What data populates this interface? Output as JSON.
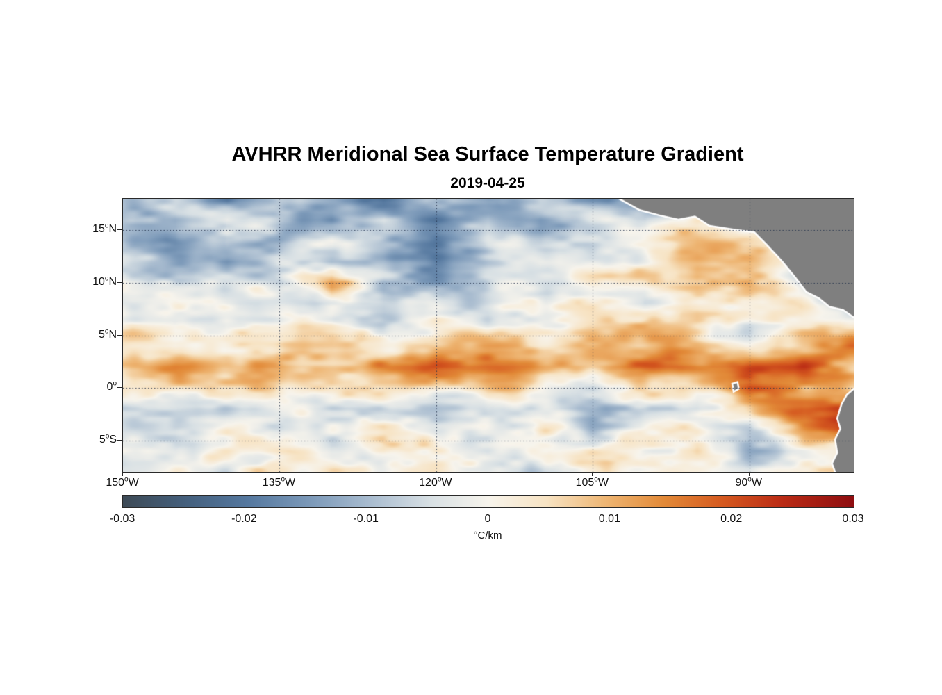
{
  "chart_data": {
    "type": "heatmap",
    "title": "AVHRR Meridional Sea Surface Temperature Gradient",
    "subtitle": "2019-04-25",
    "x_axis": {
      "range_lon": [
        -150,
        -80
      ],
      "ticks": [
        {
          "lon": -150,
          "deg": "150",
          "sup": "o",
          "dir": "W"
        },
        {
          "lon": -135,
          "deg": "135",
          "sup": "o",
          "dir": "W"
        },
        {
          "lon": -120,
          "deg": "120",
          "sup": "o",
          "dir": "W"
        },
        {
          "lon": -105,
          "deg": "105",
          "sup": "o",
          "dir": "W"
        },
        {
          "lon": -90,
          "deg": "90",
          "sup": "o",
          "dir": "W"
        }
      ]
    },
    "y_axis": {
      "range_lat": [
        -8,
        18
      ],
      "ticks": [
        {
          "lat": 15,
          "deg": "15",
          "sup": "o",
          "dir": "N"
        },
        {
          "lat": 10,
          "deg": "10",
          "sup": "o",
          "dir": "N"
        },
        {
          "lat": 5,
          "deg": "5",
          "sup": "o",
          "dir": "N"
        },
        {
          "lat": 0,
          "deg": "0",
          "sup": "o",
          "dir": ""
        },
        {
          "lat": -5,
          "deg": "5",
          "sup": "o",
          "dir": "S"
        }
      ]
    },
    "grid": {
      "lat_lines": [
        15,
        10,
        5,
        0,
        -5
      ],
      "lon_lines": [
        -135,
        -120,
        -105,
        -90
      ],
      "style": "dotted"
    },
    "colorbar": {
      "min": -0.03,
      "max": 0.03,
      "ticks": [
        -0.03,
        -0.02,
        -0.01,
        0,
        0.01,
        0.02,
        0.03
      ],
      "tick_labels": [
        "-0.03",
        "-0.02",
        "-0.01",
        "0",
        "0.01",
        "0.02",
        "0.03"
      ],
      "label": "°C/km"
    },
    "colormap": [
      {
        "t": 0.0,
        "c": "#3d4a56"
      },
      {
        "t": 0.09,
        "c": "#45617f"
      },
      {
        "t": 0.17,
        "c": "#55789f"
      },
      {
        "t": 0.26,
        "c": "#7e9bba"
      },
      {
        "t": 0.34,
        "c": "#aabdd0"
      },
      {
        "t": 0.42,
        "c": "#d8e0e4"
      },
      {
        "t": 0.5,
        "c": "#f7f4ec"
      },
      {
        "t": 0.58,
        "c": "#f7e3c3"
      },
      {
        "t": 0.66,
        "c": "#eeb674"
      },
      {
        "t": 0.74,
        "c": "#e28a38"
      },
      {
        "t": 0.82,
        "c": "#d55a20"
      },
      {
        "t": 0.9,
        "c": "#bb2c15"
      },
      {
        "t": 1.0,
        "c": "#8e0d10"
      }
    ],
    "grid_values": {
      "lons": [
        -150,
        -145,
        -140,
        -135,
        -130,
        -125,
        -120,
        -115,
        -110,
        -105,
        -100,
        -95,
        -90,
        -85,
        -80
      ],
      "lats": [
        18,
        16,
        14,
        12,
        10,
        8,
        6,
        4,
        2,
        0,
        -2,
        -4,
        -6,
        -8
      ],
      "values": [
        [
          -0.01,
          -0.004,
          -0.016,
          -0.003,
          -0.013,
          -0.022,
          -0.008,
          -0.016,
          -0.006,
          -0.018,
          -0.01,
          -0.004,
          0.0,
          0.0,
          0.0
        ],
        [
          -0.005,
          -0.013,
          -0.002,
          -0.011,
          -0.018,
          -0.006,
          -0.02,
          -0.01,
          -0.016,
          -0.004,
          -0.008,
          0.002,
          0.0,
          0.0,
          0.0
        ],
        [
          -0.009,
          -0.015,
          -0.005,
          -0.013,
          -0.003,
          -0.012,
          -0.018,
          -0.005,
          -0.01,
          -0.002,
          0.003,
          0.008,
          0.005,
          0.0,
          0.0
        ],
        [
          -0.004,
          -0.01,
          -0.016,
          -0.005,
          -0.012,
          -0.007,
          -0.015,
          -0.01,
          -0.003,
          -0.006,
          0.002,
          0.01,
          0.013,
          -0.005,
          -0.008
        ],
        [
          -0.002,
          -0.006,
          -0.003,
          -0.007,
          0.014,
          -0.01,
          -0.014,
          -0.004,
          -0.002,
          0.002,
          0.004,
          0.012,
          0.008,
          -0.004,
          -0.016
        ],
        [
          -0.004,
          -0.002,
          -0.007,
          -0.003,
          -0.005,
          -0.01,
          -0.004,
          -0.006,
          -0.002,
          0.002,
          -0.008,
          0.004,
          0.006,
          0.002,
          -0.012
        ],
        [
          0.002,
          -0.004,
          0.002,
          -0.002,
          0.003,
          -0.004,
          0.002,
          -0.003,
          0.004,
          0.002,
          0.006,
          0.004,
          -0.006,
          0.004,
          0.006
        ],
        [
          0.004,
          0.002,
          0.006,
          0.003,
          0.005,
          0.004,
          0.007,
          0.01,
          0.006,
          0.012,
          0.008,
          0.006,
          0.004,
          0.009,
          0.013
        ],
        [
          0.007,
          0.012,
          0.01,
          0.014,
          0.012,
          0.011,
          0.016,
          0.018,
          0.013,
          0.012,
          0.016,
          0.015,
          0.021,
          0.018,
          0.01
        ],
        [
          0.002,
          0.004,
          0.006,
          0.004,
          0.008,
          0.006,
          0.004,
          0.008,
          0.002,
          -0.004,
          0.004,
          0.003,
          0.023,
          0.012,
          0.005
        ],
        [
          -0.008,
          -0.004,
          -0.006,
          -0.002,
          -0.006,
          -0.004,
          -0.008,
          -0.002,
          -0.006,
          -0.01,
          -0.004,
          -0.006,
          0.004,
          0.018,
          0.021
        ],
        [
          -0.002,
          -0.004,
          0.004,
          -0.006,
          -0.002,
          0.002,
          -0.004,
          -0.002,
          0.004,
          -0.006,
          0.002,
          0.006,
          -0.008,
          0.01,
          0.024
        ],
        [
          0.002,
          -0.002,
          0.003,
          0.002,
          -0.004,
          0.004,
          0.002,
          -0.002,
          0.002,
          0.004,
          -0.002,
          0.006,
          -0.01,
          -0.004,
          0.008
        ],
        [
          -0.002,
          0.002,
          -0.003,
          0.004,
          0.002,
          -0.002,
          0.003,
          0.002,
          -0.004,
          0.002,
          0.004,
          -0.002,
          -0.006,
          0.002,
          0.004
        ]
      ]
    },
    "land_color": "#7f7f7f",
    "land_edge_color": "#ffffff",
    "land_polygons": [
      [
        [
          -102.3,
          18.0
        ],
        [
          -100.5,
          17.0
        ],
        [
          -98.6,
          16.5
        ],
        [
          -96.8,
          16.1
        ],
        [
          -95.2,
          16.4
        ],
        [
          -93.8,
          15.5
        ],
        [
          -91.2,
          15.1
        ],
        [
          -89.5,
          14.9
        ],
        [
          -88.3,
          13.7
        ],
        [
          -86.8,
          12.1
        ],
        [
          -85.5,
          10.5
        ],
        [
          -84.5,
          9.2
        ],
        [
          -83.3,
          8.6
        ],
        [
          -82.3,
          7.8
        ],
        [
          -81.0,
          7.5
        ],
        [
          -80.0,
          6.8
        ],
        [
          -80.0,
          18.0
        ]
      ],
      [
        [
          -80.0,
          -0.2
        ],
        [
          -80.6,
          -0.7
        ],
        [
          -81.1,
          -1.6
        ],
        [
          -81.5,
          -2.9
        ],
        [
          -81.2,
          -3.9
        ],
        [
          -81.7,
          -4.9
        ],
        [
          -81.5,
          -6.2
        ],
        [
          -82.0,
          -7.2
        ],
        [
          -81.7,
          -8.0
        ],
        [
          -80.0,
          -8.0
        ]
      ],
      [
        [
          -91.55,
          0.35
        ],
        [
          -91.2,
          0.45
        ],
        [
          -91.1,
          -0.05
        ],
        [
          -91.45,
          -0.25
        ]
      ]
    ]
  }
}
